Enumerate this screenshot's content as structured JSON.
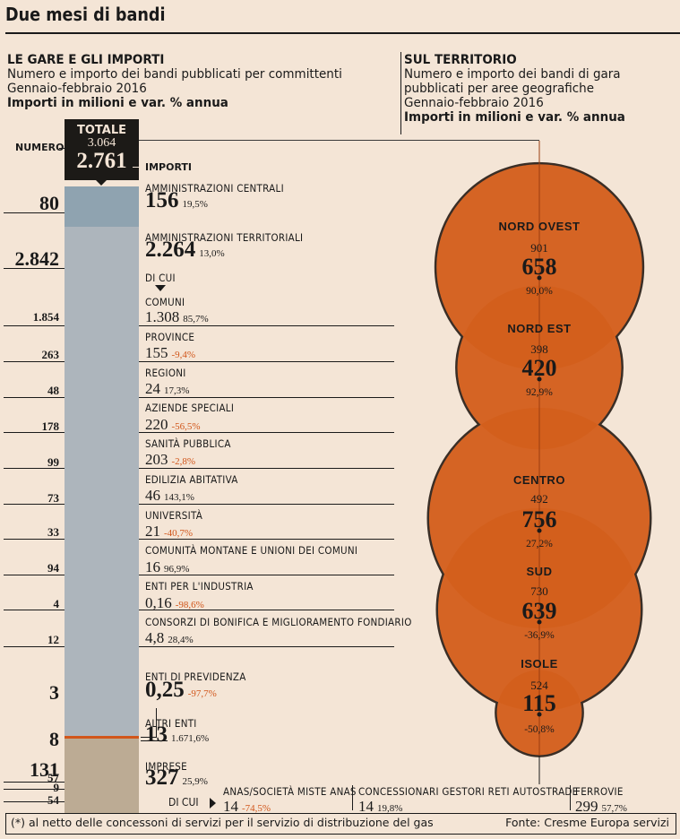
{
  "title": "Due mesi di bandi",
  "left_header": {
    "title": "LE GARE E GLI IMPORTI",
    "line1": "Numero e importo dei bandi pubblicati per committenti",
    "line2": "Gennaio-febbraio 2016",
    "line3": "Importi in milioni e var. % annua"
  },
  "right_header": {
    "title": "SUL TERRITORIO",
    "line1": "Numero e importo dei bandi di gara",
    "line2": "pubblicati per aree geografiche",
    "line3": "Gennaio-febbraio 2016",
    "line4": "Importi in milioni e var. % annua"
  },
  "total": {
    "label": "TOTALE",
    "numero": "3.064",
    "importi": "2.761",
    "numero_label": "NUMERO",
    "importi_label": "IMPORTI"
  },
  "di_cui_label": "DI CUI",
  "colors": {
    "background": "#f4e5d6",
    "bar_central": "#8fa3b0",
    "bar_public": "#adb5bc",
    "bar_imprese": "#bcab94",
    "accent_line": "#d1561b",
    "circle_fill": "#d96f34",
    "circle_overlap": "#d15a14",
    "negative_text": "#d1561b"
  },
  "chart_data": [
    {
      "type": "table",
      "title": "LE GARE E GLI IMPORTI",
      "columns": [
        "committente",
        "numero",
        "importo_mln",
        "var_pct"
      ],
      "rows": [
        {
          "name": "AMMINISTRAZIONI CENTRALI",
          "numero": "80",
          "importo": "156",
          "var": "19,5%",
          "level": "main"
        },
        {
          "name": "AMMINISTRAZIONI TERRITORIALI",
          "numero": "2.842",
          "importo": "2.264",
          "var": "13,0%",
          "level": "main"
        },
        {
          "name": "COMUNI",
          "numero": "1.854",
          "importo": "1.308",
          "var": "85,7%",
          "level": "sub"
        },
        {
          "name": "PROVINCE",
          "numero": "263",
          "importo": "155",
          "var": "-9,4%",
          "level": "sub"
        },
        {
          "name": "REGIONI",
          "numero": "48",
          "importo": "24",
          "var": "17,3%",
          "level": "sub"
        },
        {
          "name": "AZIENDE SPECIALI",
          "numero": "178",
          "importo": "220",
          "var": "-56,5%",
          "level": "sub"
        },
        {
          "name": "SANITÀ PUBBLICA",
          "numero": "99",
          "importo": "203",
          "var": "-2,8%",
          "level": "sub"
        },
        {
          "name": "EDILIZIA ABITATIVA",
          "numero": "73",
          "importo": "46",
          "var": "143,1%",
          "level": "sub"
        },
        {
          "name": "UNIVERSITÀ",
          "numero": "33",
          "importo": "21",
          "var": "-40,7%",
          "level": "sub"
        },
        {
          "name": "COMUNITÀ MONTANE E UNIONI DEI COMUNI",
          "numero": "94",
          "importo": "16",
          "var": "96,9%",
          "level": "sub"
        },
        {
          "name": "ENTI PER L'INDUSTRIA",
          "numero": "4",
          "importo": "0,16",
          "var": "-98,6%",
          "level": "sub"
        },
        {
          "name": "CONSORZI DI BONIFICA E MIGLIORAMENTO FONDIARIO",
          "numero": "12",
          "importo": "4,8",
          "var": "28,4%",
          "level": "sub"
        },
        {
          "name": "ENTI DI PREVIDENZA",
          "numero": "3",
          "importo": "0,25",
          "var": "-97,7%",
          "level": "main"
        },
        {
          "name": "ALTRI ENTI",
          "numero": "8",
          "importo": "13",
          "var": "1.671,6%",
          "level": "main"
        },
        {
          "name": "IMPRESE",
          "numero": "131",
          "importo": "327",
          "var": "25,9%",
          "level": "main"
        },
        {
          "name": "ANAS/SOCIETÀ MISTE ANAS",
          "numero": "57",
          "importo": "14",
          "var": "-74,5%",
          "level": "imprese-sub"
        },
        {
          "name": "CONCESSIONARI GESTORI RETI AUTOSTRADE",
          "numero": "9",
          "importo": "14",
          "var": "19,8%",
          "level": "imprese-sub"
        },
        {
          "name": "FERROVIE",
          "numero": "54",
          "importo": "299",
          "var": "57,7%",
          "level": "imprese-sub"
        }
      ],
      "stacked_bar_numero": [
        {
          "segment": "AMMINISTRAZIONI CENTRALI",
          "value": 80
        },
        {
          "segment": "AMMINISTRAZIONI TERRITORIALI + ENTI DI PREVIDENZA",
          "value": 2845
        },
        {
          "segment": "ALTRI ENTI",
          "value": 8
        },
        {
          "segment": "IMPRESE",
          "value": 131
        }
      ]
    },
    {
      "type": "scatter",
      "title": "SUL TERRITORIO",
      "description": "proportional bubbles by importo",
      "series": [
        {
          "area": "NORD OVEST",
          "numero": "901",
          "importo": 658,
          "var": "90,0%"
        },
        {
          "area": "NORD EST",
          "numero": "398",
          "importo": 420,
          "var": "92,9%"
        },
        {
          "area": "CENTRO",
          "numero": "492",
          "importo": 756,
          "var": "27,2%"
        },
        {
          "area": "SUD",
          "numero": "730",
          "importo": 639,
          "var": "-36,9%"
        },
        {
          "area": "ISOLE",
          "numero": "524",
          "importo": 115,
          "var": "-50,8%"
        }
      ]
    }
  ],
  "footer": {
    "note": "(*) al netto delle concessoni di servizi per il servizio di distribuzione del gas",
    "source": "Fonte: Cresme Europa servizi"
  }
}
